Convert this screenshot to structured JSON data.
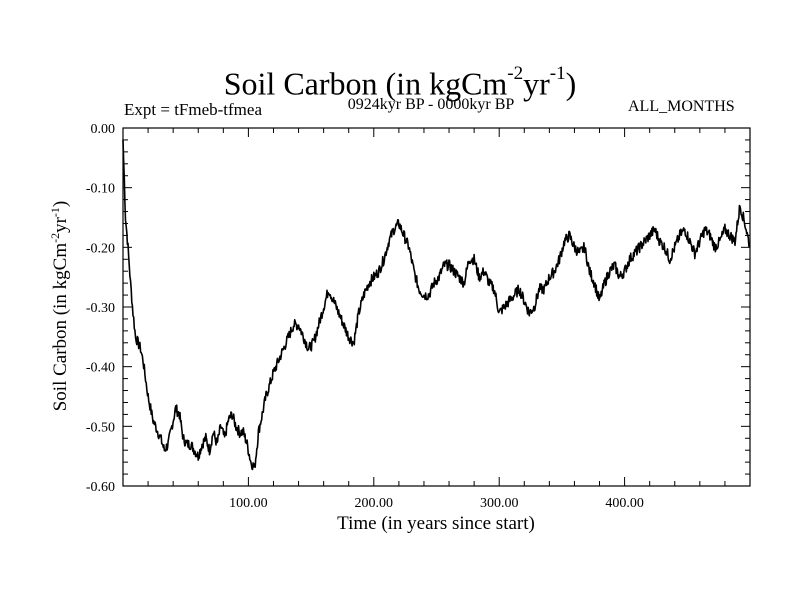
{
  "header": {
    "title_main": "Soil Carbon (in kgCm",
    "title_exp1": "-2",
    "title_mid": "yr",
    "title_exp2": "-1",
    "title_end": ")",
    "experiment": "Expt = tFmeb-tfmea",
    "period": "0924kyr BP - 0000kyr BP",
    "months": "ALL_MONTHS"
  },
  "chart_data": {
    "type": "line",
    "title": "Soil Carbon (in kgCm-2yr-1)",
    "xlabel": "Time (in years since start)",
    "ylabel_parts": {
      "main": "Soil Carbon (in kgCm",
      "exp1": "-2",
      "mid": "yr",
      "exp2": "-1",
      "end": ")"
    },
    "xlim": [
      0,
      500
    ],
    "ylim": [
      -0.6,
      0.0
    ],
    "x_ticks": [
      100,
      200,
      300,
      400
    ],
    "x_tick_labels": [
      "100.00",
      "200.00",
      "300.00",
      "400.00"
    ],
    "y_ticks": [
      0.0,
      -0.1,
      -0.2,
      -0.3,
      -0.4,
      -0.5,
      -0.6
    ],
    "y_tick_labels": [
      "0.00",
      "-0.10",
      "-0.20",
      "-0.30",
      "-0.40",
      "-0.50",
      "-0.60"
    ],
    "series": [
      {
        "name": "Soil Carbon",
        "x": [
          0,
          2,
          4,
          6,
          8,
          10,
          12,
          14,
          16,
          18,
          20,
          22,
          24,
          26,
          28,
          30,
          33,
          36,
          39,
          42,
          45,
          48,
          51,
          54,
          57,
          60,
          63,
          66,
          69,
          72,
          75,
          78,
          81,
          84,
          87,
          90,
          93,
          96,
          99,
          102,
          105,
          108,
          111,
          114,
          117,
          120,
          124,
          128,
          132,
          136,
          140,
          144,
          148,
          152,
          156,
          160,
          164,
          168,
          172,
          176,
          180,
          184,
          188,
          192,
          196,
          200,
          204,
          208,
          212,
          216,
          220,
          224,
          228,
          232,
          236,
          240,
          244,
          248,
          252,
          256,
          260,
          264,
          268,
          272,
          276,
          280,
          284,
          288,
          292,
          296,
          300,
          304,
          308,
          312,
          316,
          320,
          324,
          328,
          332,
          336,
          340,
          344,
          348,
          352,
          356,
          360,
          364,
          368,
          372,
          376,
          380,
          384,
          388,
          392,
          396,
          400,
          404,
          408,
          412,
          416,
          420,
          424,
          428,
          432,
          436,
          440,
          444,
          448,
          452,
          456,
          460,
          464,
          468,
          472,
          476,
          480,
          484,
          488,
          492,
          496,
          500
        ],
        "y": [
          -0.02,
          -0.15,
          -0.2,
          -0.26,
          -0.31,
          -0.35,
          -0.36,
          -0.37,
          -0.39,
          -0.42,
          -0.45,
          -0.47,
          -0.49,
          -0.5,
          -0.51,
          -0.52,
          -0.54,
          -0.53,
          -0.5,
          -0.47,
          -0.48,
          -0.52,
          -0.53,
          -0.53,
          -0.54,
          -0.55,
          -0.53,
          -0.52,
          -0.54,
          -0.51,
          -0.53,
          -0.5,
          -0.52,
          -0.49,
          -0.48,
          -0.5,
          -0.51,
          -0.51,
          -0.53,
          -0.56,
          -0.57,
          -0.51,
          -0.48,
          -0.45,
          -0.43,
          -0.41,
          -0.39,
          -0.37,
          -0.35,
          -0.33,
          -0.33,
          -0.35,
          -0.37,
          -0.36,
          -0.33,
          -0.3,
          -0.27,
          -0.29,
          -0.31,
          -0.33,
          -0.35,
          -0.36,
          -0.31,
          -0.28,
          -0.26,
          -0.25,
          -0.24,
          -0.22,
          -0.19,
          -0.17,
          -0.16,
          -0.18,
          -0.2,
          -0.24,
          -0.27,
          -0.28,
          -0.28,
          -0.26,
          -0.25,
          -0.23,
          -0.23,
          -0.24,
          -0.25,
          -0.26,
          -0.22,
          -0.22,
          -0.25,
          -0.24,
          -0.26,
          -0.27,
          -0.31,
          -0.3,
          -0.29,
          -0.28,
          -0.27,
          -0.29,
          -0.31,
          -0.3,
          -0.27,
          -0.27,
          -0.25,
          -0.24,
          -0.22,
          -0.19,
          -0.18,
          -0.2,
          -0.21,
          -0.2,
          -0.24,
          -0.26,
          -0.29,
          -0.26,
          -0.24,
          -0.23,
          -0.25,
          -0.24,
          -0.22,
          -0.21,
          -0.2,
          -0.19,
          -0.18,
          -0.17,
          -0.19,
          -0.2,
          -0.22,
          -0.2,
          -0.18,
          -0.17,
          -0.19,
          -0.21,
          -0.19,
          -0.17,
          -0.18,
          -0.2,
          -0.19,
          -0.17,
          -0.18,
          -0.19,
          -0.13,
          -0.16,
          -0.2
        ]
      }
    ],
    "grid": false,
    "legend": "none"
  }
}
